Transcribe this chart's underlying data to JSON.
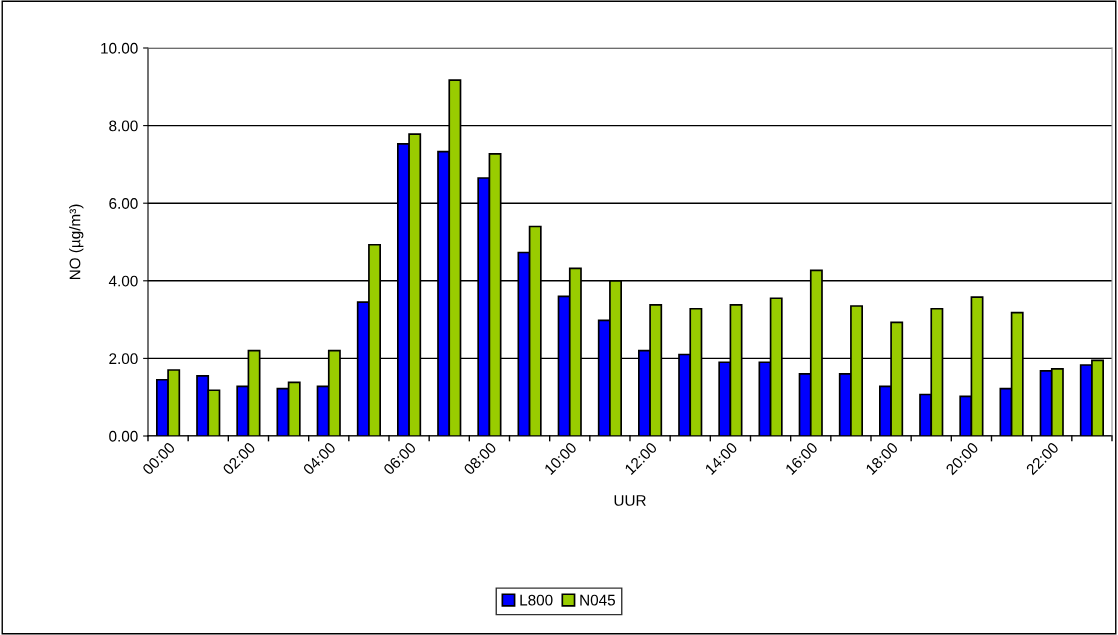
{
  "chart_data": {
    "type": "bar",
    "xlabel": "UUR",
    "ylabel": "NO (µg/m³)",
    "categories": [
      "00:00",
      null,
      "02:00",
      null,
      "04:00",
      null,
      "06:00",
      null,
      "08:00",
      null,
      "10:00",
      null,
      "12:00",
      null,
      "14:00",
      null,
      "16:00",
      null,
      "18:00",
      null,
      "20:00",
      null,
      "22:00",
      null
    ],
    "series": [
      {
        "name": "L800",
        "color": "#0000ff",
        "values": [
          1.45,
          1.55,
          1.28,
          1.22,
          1.28,
          3.45,
          7.53,
          7.33,
          6.65,
          4.73,
          3.6,
          2.98,
          2.2,
          2.1,
          1.9,
          1.9,
          1.6,
          1.6,
          1.28,
          1.07,
          1.02,
          1.22,
          1.68,
          1.83
        ]
      },
      {
        "name": "N045",
        "color": "#99cc00",
        "values": [
          1.7,
          1.18,
          2.2,
          1.38,
          2.2,
          4.93,
          7.78,
          9.17,
          7.27,
          5.4,
          4.32,
          4.0,
          3.38,
          3.28,
          3.38,
          3.55,
          4.27,
          3.35,
          2.93,
          3.28,
          3.58,
          3.18,
          1.73,
          1.95
        ]
      }
    ],
    "ylim": [
      0,
      10
    ],
    "yticks": [
      {
        "value": 0,
        "label": "0.00"
      },
      {
        "value": 2,
        "label": "2.00"
      },
      {
        "value": 4,
        "label": "4.00"
      },
      {
        "value": 6,
        "label": "6.00"
      },
      {
        "value": 8,
        "label": "8.00"
      },
      {
        "value": 10,
        "label": "10.00"
      }
    ],
    "grid": "y",
    "legend": "bottom"
  }
}
